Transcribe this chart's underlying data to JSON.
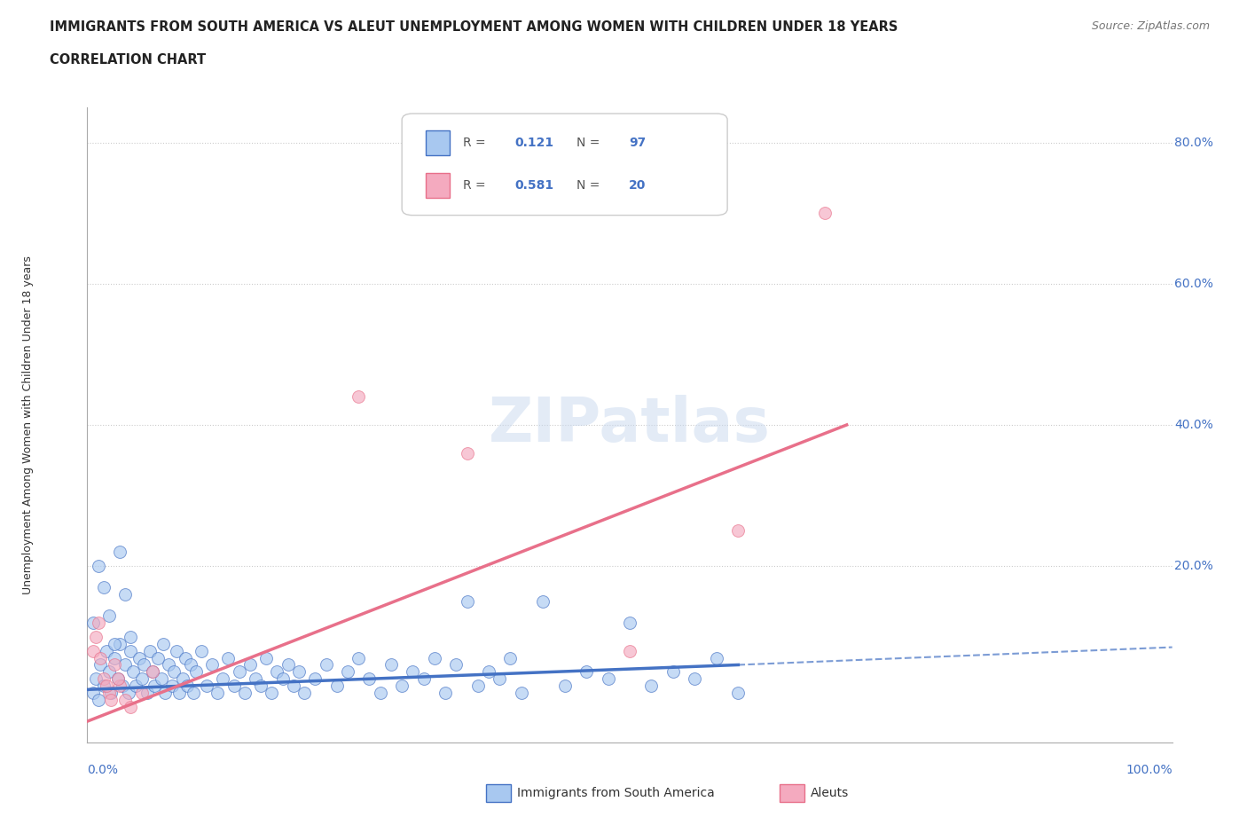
{
  "title": "IMMIGRANTS FROM SOUTH AMERICA VS ALEUT UNEMPLOYMENT AMONG WOMEN WITH CHILDREN UNDER 18 YEARS",
  "subtitle": "CORRELATION CHART",
  "source": "Source: ZipAtlas.com",
  "ylabel": "Unemployment Among Women with Children Under 18 years",
  "xlim": [
    0.0,
    1.0
  ],
  "ylim": [
    -0.05,
    0.85
  ],
  "legend1_label": "Immigrants from South America",
  "legend2_label": "Aleuts",
  "R1": 0.121,
  "N1": 97,
  "R2": 0.581,
  "N2": 20,
  "color_blue": "#A8C8F0",
  "color_pink": "#F4AABF",
  "color_blue_line": "#4472C4",
  "color_pink_line": "#E8708A",
  "color_axis": "#4472C4",
  "blue_scatter_x": [
    0.005,
    0.008,
    0.01,
    0.012,
    0.015,
    0.018,
    0.02,
    0.022,
    0.025,
    0.028,
    0.03,
    0.032,
    0.035,
    0.038,
    0.04,
    0.042,
    0.045,
    0.048,
    0.05,
    0.052,
    0.055,
    0.058,
    0.06,
    0.062,
    0.065,
    0.068,
    0.07,
    0.072,
    0.075,
    0.078,
    0.08,
    0.082,
    0.085,
    0.088,
    0.09,
    0.092,
    0.095,
    0.098,
    0.1,
    0.105,
    0.11,
    0.115,
    0.12,
    0.125,
    0.13,
    0.135,
    0.14,
    0.145,
    0.15,
    0.155,
    0.16,
    0.165,
    0.17,
    0.175,
    0.18,
    0.185,
    0.19,
    0.195,
    0.2,
    0.21,
    0.22,
    0.23,
    0.24,
    0.25,
    0.26,
    0.27,
    0.28,
    0.29,
    0.3,
    0.31,
    0.32,
    0.33,
    0.34,
    0.35,
    0.36,
    0.37,
    0.38,
    0.39,
    0.4,
    0.42,
    0.44,
    0.46,
    0.48,
    0.5,
    0.52,
    0.54,
    0.56,
    0.58,
    0.6,
    0.005,
    0.01,
    0.015,
    0.02,
    0.025,
    0.03,
    0.035,
    0.04
  ],
  "blue_scatter_y": [
    0.02,
    0.04,
    0.01,
    0.06,
    0.03,
    0.08,
    0.05,
    0.02,
    0.07,
    0.04,
    0.09,
    0.03,
    0.06,
    0.02,
    0.08,
    0.05,
    0.03,
    0.07,
    0.04,
    0.06,
    0.02,
    0.08,
    0.05,
    0.03,
    0.07,
    0.04,
    0.09,
    0.02,
    0.06,
    0.03,
    0.05,
    0.08,
    0.02,
    0.04,
    0.07,
    0.03,
    0.06,
    0.02,
    0.05,
    0.08,
    0.03,
    0.06,
    0.02,
    0.04,
    0.07,
    0.03,
    0.05,
    0.02,
    0.06,
    0.04,
    0.03,
    0.07,
    0.02,
    0.05,
    0.04,
    0.06,
    0.03,
    0.05,
    0.02,
    0.04,
    0.06,
    0.03,
    0.05,
    0.07,
    0.04,
    0.02,
    0.06,
    0.03,
    0.05,
    0.04,
    0.07,
    0.02,
    0.06,
    0.15,
    0.03,
    0.05,
    0.04,
    0.07,
    0.02,
    0.15,
    0.03,
    0.05,
    0.04,
    0.12,
    0.03,
    0.05,
    0.04,
    0.07,
    0.02,
    0.12,
    0.2,
    0.17,
    0.13,
    0.09,
    0.22,
    0.16,
    0.1
  ],
  "pink_scatter_x": [
    0.005,
    0.01,
    0.015,
    0.02,
    0.025,
    0.03,
    0.035,
    0.04,
    0.05,
    0.06,
    0.008,
    0.012,
    0.018,
    0.022,
    0.028,
    0.25,
    0.35,
    0.5,
    0.6,
    0.68
  ],
  "pink_scatter_y": [
    0.08,
    0.12,
    0.04,
    0.02,
    0.06,
    0.03,
    0.01,
    0.0,
    0.02,
    0.05,
    0.1,
    0.07,
    0.03,
    0.01,
    0.04,
    0.44,
    0.36,
    0.08,
    0.25,
    0.7
  ],
  "blue_line_x0": 0.0,
  "blue_line_y0": 0.025,
  "blue_line_x1": 0.6,
  "blue_line_y1": 0.06,
  "blue_line_dash_x1": 1.0,
  "blue_line_dash_y1": 0.085,
  "pink_line_x0": 0.0,
  "pink_line_y0": -0.02,
  "pink_line_x1": 0.7,
  "pink_line_y1": 0.4
}
